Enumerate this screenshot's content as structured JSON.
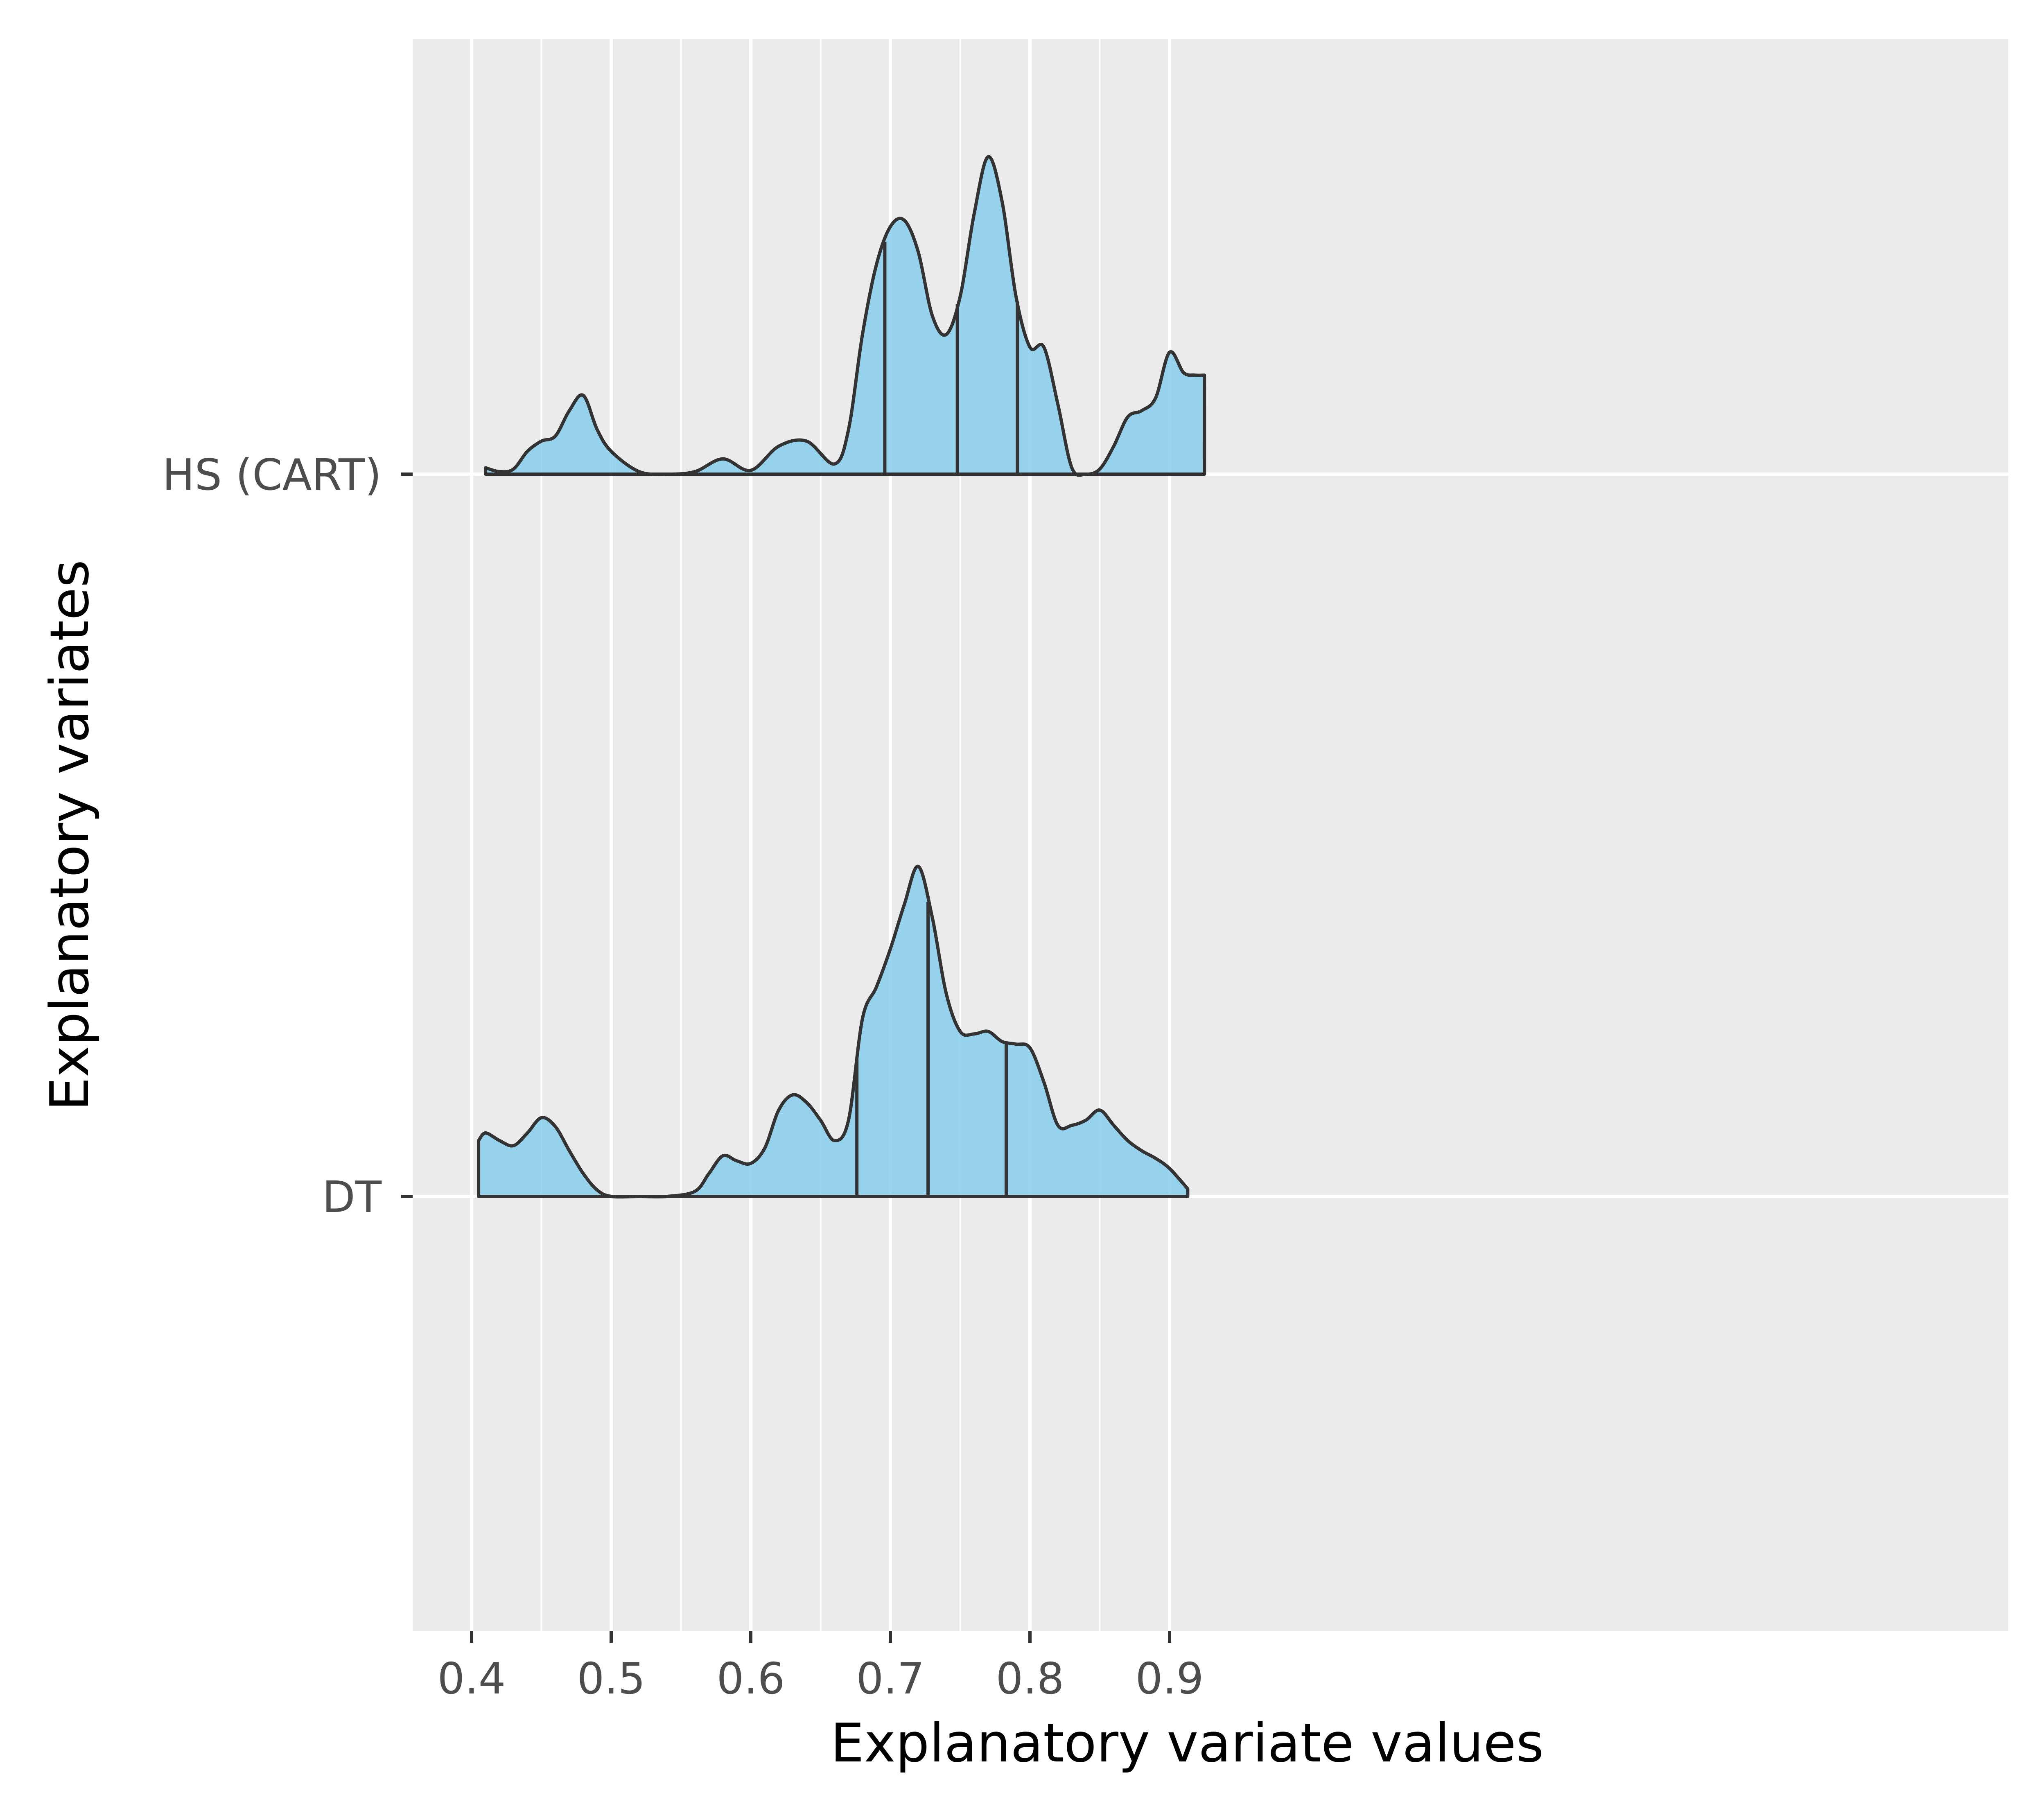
{
  "chart_data": {
    "type": "ridgeline",
    "xlabel": "Explanatory variate values",
    "ylabel": "Explanatory variates",
    "xlim": [
      0.38,
      0.95
    ],
    "x_ticks": [
      0.4,
      0.5,
      0.6,
      0.7,
      0.8,
      0.9
    ],
    "x_tick_labels": [
      "0.4",
      "0.5",
      "0.6",
      "0.7",
      "0.8",
      "0.9"
    ],
    "grid": true,
    "fill_color": "#87CEEB",
    "outline_color": "#333333",
    "panel_color": "#EBEBEB",
    "grid_color": "#FFFFFF",
    "series": [
      {
        "name": "HS (CART)",
        "quantiles": [
          0.696,
          0.748,
          0.791
        ],
        "density": {
          "x": [
            0.41,
            0.42,
            0.43,
            0.44,
            0.45,
            0.46,
            0.47,
            0.48,
            0.49,
            0.5,
            0.52,
            0.54,
            0.56,
            0.58,
            0.6,
            0.62,
            0.64,
            0.66,
            0.67,
            0.68,
            0.69,
            0.7,
            0.71,
            0.72,
            0.73,
            0.74,
            0.75,
            0.76,
            0.77,
            0.78,
            0.79,
            0.8,
            0.81,
            0.82,
            0.83,
            0.84,
            0.85,
            0.86,
            0.87,
            0.88,
            0.89,
            0.9,
            0.91,
            0.918,
            0.925
          ],
          "y": [
            0.05,
            0.02,
            0.04,
            0.18,
            0.26,
            0.3,
            0.5,
            0.62,
            0.35,
            0.18,
            0.02,
            0.0,
            0.02,
            0.12,
            0.03,
            0.22,
            0.26,
            0.08,
            0.35,
            1.1,
            1.65,
            1.95,
            2.0,
            1.75,
            1.25,
            1.1,
            1.4,
            2.05,
            2.5,
            2.15,
            1.4,
            1.0,
            1.0,
            0.55,
            0.05,
            0.0,
            0.04,
            0.22,
            0.45,
            0.5,
            0.6,
            0.96,
            0.8,
            0.78,
            0.78
          ]
        }
      },
      {
        "name": "DT",
        "quantiles": [
          0.676,
          0.727,
          0.783
        ],
        "density": {
          "x": [
            0.405,
            0.41,
            0.42,
            0.43,
            0.44,
            0.45,
            0.46,
            0.47,
            0.48,
            0.49,
            0.5,
            0.52,
            0.54,
            0.56,
            0.57,
            0.58,
            0.59,
            0.6,
            0.61,
            0.62,
            0.63,
            0.64,
            0.65,
            0.66,
            0.67,
            0.68,
            0.69,
            0.7,
            0.71,
            0.72,
            0.73,
            0.74,
            0.75,
            0.76,
            0.77,
            0.78,
            0.79,
            0.8,
            0.81,
            0.82,
            0.83,
            0.84,
            0.85,
            0.86,
            0.87,
            0.88,
            0.89,
            0.9,
            0.913
          ],
          "y": [
            0.44,
            0.5,
            0.44,
            0.4,
            0.5,
            0.62,
            0.55,
            0.36,
            0.18,
            0.05,
            0.0,
            0.0,
            0.0,
            0.04,
            0.18,
            0.32,
            0.28,
            0.26,
            0.38,
            0.68,
            0.8,
            0.74,
            0.6,
            0.44,
            0.6,
            1.4,
            1.65,
            1.95,
            2.3,
            2.6,
            2.2,
            1.6,
            1.3,
            1.28,
            1.3,
            1.22,
            1.2,
            1.17,
            0.9,
            0.56,
            0.56,
            0.6,
            0.68,
            0.56,
            0.44,
            0.36,
            0.3,
            0.22,
            0.06
          ]
        }
      }
    ]
  }
}
